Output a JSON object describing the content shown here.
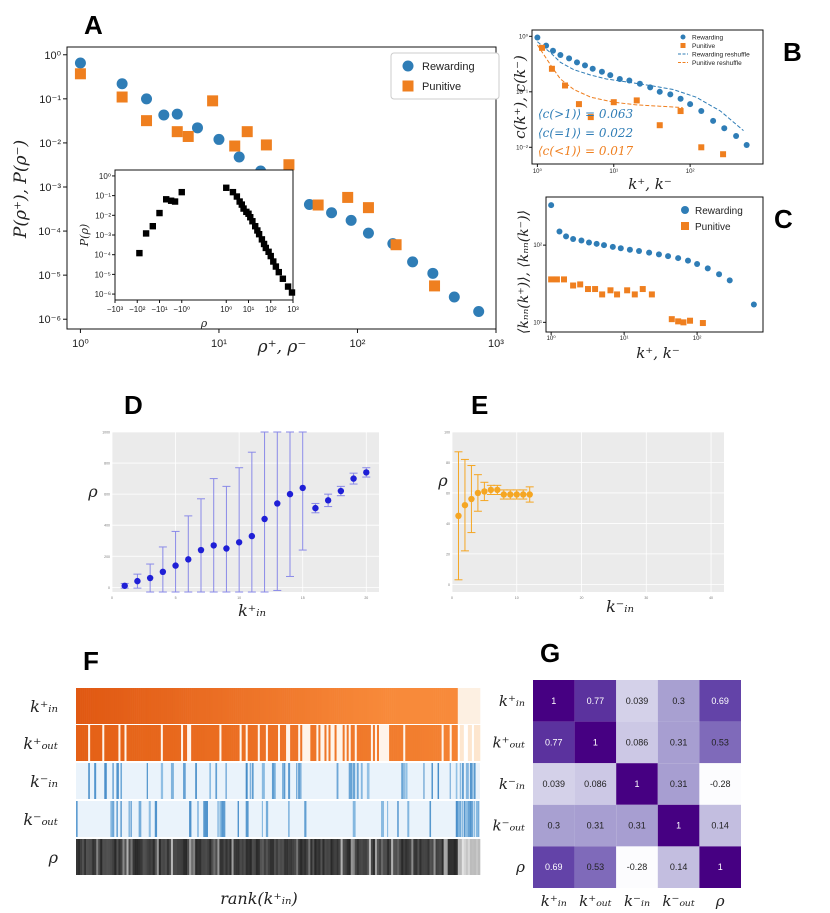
{
  "panels": {
    "A": "A",
    "B": "B",
    "C": "C",
    "D": "D",
    "E": "E",
    "F": "F",
    "G": "G"
  },
  "colors": {
    "rewarding": "#2f7db6",
    "punitive": "#ef7f1f",
    "inset": "#000000",
    "panel_d_points": "#1f1fd6",
    "panel_d_errors": "#8a8ae8",
    "panel_e": "#f5a623",
    "panel_bg_gray": "#ebebeb"
  },
  "chart_data": [
    {
      "id": "A",
      "type": "scatter",
      "xscale": "log",
      "yscale": "log",
      "xlim": [
        0.8,
        1000
      ],
      "ylim": [
        6e-07,
        1.5
      ],
      "xlabel": "ρ⁺, ρ⁻",
      "ylabel": "P(ρ⁺), P(ρ⁻)",
      "xticks": [
        {
          "v": 1,
          "label": "10⁰"
        },
        {
          "v": 10,
          "label": "10¹"
        },
        {
          "v": 100,
          "label": "10²"
        },
        {
          "v": 1000,
          "label": "10³"
        }
      ],
      "yticks": [
        {
          "v": 1,
          "label": "10⁰"
        },
        {
          "v": 0.1,
          "label": "10⁻¹"
        },
        {
          "v": 0.01,
          "label": "10⁻²"
        },
        {
          "v": 0.001,
          "label": "10⁻³"
        },
        {
          "v": 0.0001,
          "label": "10⁻⁴"
        },
        {
          "v": 1e-05,
          "label": "10⁻⁵"
        },
        {
          "v": 1e-06,
          "label": "10⁻⁶"
        }
      ],
      "legend": {
        "placement": "top-right",
        "entries": [
          "Rewarding",
          "Punitive"
        ]
      },
      "series": [
        {
          "name": "Rewarding",
          "marker": "circle",
          "x": [
            1,
            2,
            3,
            4,
            5,
            7,
            10,
            14,
            20,
            30,
            45,
            65,
            90,
            120,
            180,
            250,
            350,
            500,
            750
          ],
          "y": [
            0.65,
            0.22,
            0.1,
            0.043,
            0.045,
            0.022,
            0.012,
            0.0048,
            0.0023,
            0.0013,
            0.0004,
            0.00026,
            0.000175,
            9e-05,
            5.2e-05,
            2e-05,
            1.1e-05,
            3.2e-06,
            1.5e-06
          ]
        },
        {
          "name": "Punitive",
          "marker": "square",
          "x": [
            1,
            2,
            3,
            5,
            6,
            9,
            13,
            16,
            22,
            32,
            52,
            85,
            120,
            190,
            360
          ],
          "y": [
            0.37,
            0.11,
            0.032,
            0.018,
            0.014,
            0.09,
            0.0085,
            0.018,
            0.009,
            0.0032,
            0.00039,
            0.00058,
            0.00034,
            4.9e-05,
            5.7e-06
          ]
        }
      ]
    },
    {
      "id": "A-inset",
      "type": "scatter",
      "xscale": "symlog",
      "yscale": "log",
      "xlabel": "ρ",
      "ylabel": "P(ρ)",
      "xticks": [
        "−10³",
        "−10²",
        "−10¹",
        "−10⁰",
        "10⁰",
        "10¹",
        "10²",
        "10³"
      ],
      "yticks": [
        {
          "v": 1,
          "label": "10⁰"
        },
        {
          "v": 0.1,
          "label": "10⁻¹"
        },
        {
          "v": 0.01,
          "label": "10⁻²"
        },
        {
          "v": 0.001,
          "label": "10⁻³"
        },
        {
          "v": 0.0001,
          "label": "10⁻⁴"
        },
        {
          "v": 1e-05,
          "label": "10⁻⁵"
        },
        {
          "v": 1e-06,
          "label": "10⁻⁶"
        }
      ],
      "series": [
        {
          "name": "net",
          "marker": "square",
          "x": [
            -80,
            -40,
            -20,
            -10,
            -5,
            -3,
            -2,
            -1,
            1,
            2,
            3,
            4,
            5,
            6,
            8,
            10,
            12,
            15,
            20,
            25,
            30,
            40,
            50,
            60,
            80,
            100,
            130,
            170,
            230,
            350,
            600,
            900
          ],
          "y": [
            0.00012,
            0.0012,
            0.0028,
            0.013,
            0.065,
            0.055,
            0.05,
            0.15,
            0.25,
            0.15,
            0.09,
            0.05,
            0.035,
            0.022,
            0.015,
            0.012,
            0.008,
            0.005,
            0.0028,
            0.0017,
            0.0011,
            0.0006,
            0.00035,
            0.00022,
            0.00014,
            8.5e-05,
            4.5e-05,
            2.5e-05,
            1.3e-05,
            6e-06,
            2.4e-06,
            1.2e-06
          ]
        }
      ]
    },
    {
      "id": "B",
      "type": "scatter",
      "xscale": "log",
      "yscale": "log",
      "xlabel": "k⁺, k⁻",
      "ylabel": "c(k⁺), c(k⁻)",
      "xticks": [
        {
          "v": 1,
          "label": "10⁰"
        },
        {
          "v": 10,
          "label": "10¹"
        },
        {
          "v": 100,
          "label": "10²"
        }
      ],
      "yticks": [
        {
          "v": 1,
          "label": "10⁰"
        },
        {
          "v": 0.1,
          "label": "10⁻¹"
        },
        {
          "v": 0.01,
          "label": "10⁻²"
        }
      ],
      "legend": {
        "placement": "top-right",
        "entries": [
          "Rewarding",
          "Punitive",
          "Rewarding reshuffle",
          "Punitive reshuffle"
        ]
      },
      "annotations": [
        {
          "text": "⟨c(>1)⟩ = 0.063",
          "color": "#2f7db6"
        },
        {
          "text": "⟨c(=1)⟩ = 0.022",
          "color": "#2f7db6"
        },
        {
          "text": "⟨c(<1)⟩ = 0.017",
          "color": "#ef7f1f"
        }
      ],
      "series": [
        {
          "name": "Rewarding",
          "marker": "circle",
          "x": [
            1,
            1.3,
            1.6,
            2,
            2.6,
            3.3,
            4.2,
            5.3,
            7,
            9,
            12,
            16,
            22,
            30,
            40,
            55,
            75,
            100,
            140,
            200,
            280,
            400,
            550
          ],
          "y": [
            0.95,
            0.68,
            0.55,
            0.46,
            0.4,
            0.34,
            0.3,
            0.26,
            0.23,
            0.2,
            0.17,
            0.16,
            0.14,
            0.12,
            0.1,
            0.09,
            0.075,
            0.06,
            0.045,
            0.03,
            0.022,
            0.016,
            0.011
          ]
        },
        {
          "name": "Punitive",
          "marker": "square",
          "x": [
            1.15,
            1.55,
            2.3,
            3.5,
            5,
            10,
            20,
            40,
            75,
            140,
            270
          ],
          "y": [
            0.62,
            0.26,
            0.13,
            0.06,
            0.035,
            0.065,
            0.07,
            0.025,
            0.045,
            0.01,
            0.0075
          ]
        },
        {
          "name": "Rewarding reshuffle",
          "line": "dashed",
          "x": [
            1,
            1.5,
            2,
            3,
            5,
            8,
            15,
            30,
            60,
            120,
            250,
            500
          ],
          "y": [
            0.8,
            0.5,
            0.34,
            0.25,
            0.2,
            0.17,
            0.15,
            0.13,
            0.11,
            0.08,
            0.045,
            0.02
          ]
        },
        {
          "name": "Punitive reshuffle",
          "line": "dashed",
          "x": [
            1,
            1.5,
            2,
            3,
            5,
            10,
            20,
            40,
            80
          ],
          "y": [
            0.7,
            0.3,
            0.17,
            0.11,
            0.08,
            0.065,
            0.058,
            0.055,
            0.052
          ]
        }
      ]
    },
    {
      "id": "C",
      "type": "scatter",
      "xscale": "log",
      "yscale": "log",
      "xlabel": "k⁺, k⁻",
      "ylabel": "⟨kₙₙ(k⁺)⟩, ⟨kₙₙ(k⁻)⟩",
      "xticks": [
        {
          "v": 1,
          "label": "10⁰"
        },
        {
          "v": 10,
          "label": "10¹"
        },
        {
          "v": 100,
          "label": "10²"
        }
      ],
      "yticks": [
        {
          "v": 100,
          "label": "10²"
        },
        {
          "v": 10,
          "label": "10¹"
        }
      ],
      "legend": {
        "placement": "top-right",
        "entries": [
          "Rewarding",
          "Punitive"
        ]
      },
      "series": [
        {
          "name": "Rewarding",
          "marker": "circle",
          "x": [
            1,
            1.3,
            1.6,
            2,
            2.6,
            3.3,
            4.2,
            5.3,
            7,
            9,
            12,
            16,
            22,
            30,
            40,
            55,
            75,
            100,
            140,
            200,
            280,
            600
          ],
          "y": [
            330,
            150,
            130,
            120,
            115,
            108,
            104,
            100,
            95,
            91,
            87,
            84,
            80,
            76,
            72,
            68,
            63,
            57,
            50,
            42,
            35,
            17
          ]
        },
        {
          "name": "Punitive",
          "marker": "square",
          "x": [
            1,
            1.2,
            1.5,
            2,
            2.5,
            3.2,
            4,
            5,
            6.5,
            8,
            11,
            14,
            18,
            24,
            45,
            55,
            65,
            80,
            120
          ],
          "y": [
            36,
            36,
            36,
            30,
            31,
            27,
            27,
            23,
            26,
            23,
            26,
            23,
            27,
            23,
            11,
            10.3,
            10,
            10.5,
            9.8
          ]
        }
      ]
    },
    {
      "id": "D",
      "type": "scatter-errorbar",
      "xlabel": "k⁺ᵢₙ",
      "ylabel": "ρ",
      "xticks": [
        "0",
        "5",
        "10",
        "15",
        "20"
      ],
      "yticks": [
        "0",
        "200",
        "400",
        "600",
        "800",
        "1000"
      ],
      "xlim": [
        0,
        21
      ],
      "ylim": [
        -30,
        1000
      ],
      "x": [
        1,
        2,
        3,
        4,
        5,
        6,
        7,
        8,
        9,
        10,
        11,
        12,
        13,
        14,
        15,
        16,
        17,
        18,
        19,
        20
      ],
      "y": [
        10,
        40,
        60,
        100,
        140,
        180,
        240,
        270,
        250,
        290,
        330,
        440,
        540,
        600,
        640,
        510,
        560,
        620,
        700,
        740
      ],
      "err": [
        15,
        45,
        90,
        160,
        220,
        280,
        330,
        430,
        400,
        480,
        540,
        580,
        560,
        530,
        400,
        30,
        40,
        30,
        35,
        30
      ]
    },
    {
      "id": "E",
      "type": "scatter-errorbar",
      "xlabel": "k⁻ᵢₙ",
      "ylabel": "ρ",
      "xticks": [
        "0",
        "10",
        "20",
        "30",
        "40"
      ],
      "yticks": [
        "0",
        "20",
        "40",
        "60",
        "80",
        "100"
      ],
      "xlim": [
        0,
        42
      ],
      "ylim": [
        -5,
        100
      ],
      "x": [
        1,
        2,
        3,
        4,
        5,
        6,
        7,
        8,
        9,
        10,
        11,
        12
      ],
      "y": [
        45,
        52,
        56,
        60,
        61,
        62,
        62,
        59,
        59,
        59,
        59,
        59
      ],
      "err": [
        42,
        30,
        22,
        12,
        6,
        3,
        3,
        3,
        3,
        3,
        3,
        5
      ]
    },
    {
      "id": "F",
      "type": "heatmap",
      "rows": [
        "k⁺ᵢₙ",
        "k⁺ₒᵤₜ",
        "k⁻ᵢₙ",
        "k⁻ₒᵤₜ",
        "ρ"
      ],
      "xlabel": "rank(k⁺ᵢₙ)"
    },
    {
      "id": "G",
      "type": "heatmap",
      "labels": [
        "k⁺ᵢₙ",
        "k⁺ₒᵤₜ",
        "k⁻ᵢₙ",
        "k⁻ₒᵤₜ",
        "ρ"
      ],
      "values": [
        [
          1,
          0.77,
          0.039,
          0.3,
          0.69
        ],
        [
          0.77,
          1,
          0.086,
          0.31,
          0.53
        ],
        [
          0.039,
          0.086,
          1,
          0.31,
          -0.28
        ],
        [
          0.3,
          0.31,
          0.31,
          1,
          0.14
        ],
        [
          0.69,
          0.53,
          -0.28,
          0.14,
          1
        ]
      ]
    }
  ]
}
